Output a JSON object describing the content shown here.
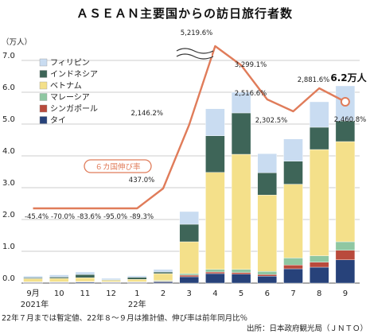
{
  "chart_data": {
    "type": "bar",
    "title": "ＡＳＥＡＮ主要国からの訪日旅行者数",
    "unit_label": "（万人）",
    "categories": [
      "9月",
      "10",
      "11",
      "12",
      "1",
      "2",
      "3",
      "4",
      "5",
      "6",
      "7",
      "8",
      "9"
    ],
    "category_sublabels": [
      "2021年",
      "",
      "",
      "",
      "22年",
      "",
      "",
      "",
      "",
      "",
      "",
      "",
      ""
    ],
    "ylim": [
      0,
      7
    ],
    "yticks": [
      "0.0",
      "1.0",
      "2.0",
      "3.0",
      "4.0",
      "5.0",
      "6.0",
      "7.0"
    ],
    "stack_order": [
      "タイ",
      "シンガポール",
      "マレーシア",
      "ベトナム",
      "インドネシア",
      "フィリピン"
    ],
    "legend": [
      "フィリピン",
      "インドネシア",
      "ベトナム",
      "マレーシア",
      "シンガポール",
      "タイ"
    ],
    "colors": {
      "タイ": "#27427a",
      "シンガポール": "#b94a3c",
      "マレーシア": "#8fc7a2",
      "ベトナム": "#f4e08a",
      "インドネシア": "#3e6558",
      "フィリピン": "#c9dcf1"
    },
    "series": [
      {
        "name": "タイ",
        "values": [
          0.02,
          0.02,
          0.03,
          0.02,
          0.02,
          0.04,
          0.2,
          0.3,
          0.28,
          0.22,
          0.45,
          0.5,
          0.73
        ]
      },
      {
        "name": "シンガポール",
        "values": [
          0.01,
          0.01,
          0.01,
          0.01,
          0.01,
          0.02,
          0.05,
          0.05,
          0.05,
          0.05,
          0.12,
          0.16,
          0.3
        ]
      },
      {
        "name": "マレーシア",
        "values": [
          0.01,
          0.01,
          0.01,
          0.01,
          0.01,
          0.02,
          0.05,
          0.08,
          0.1,
          0.1,
          0.22,
          0.2,
          0.27
        ]
      },
      {
        "name": "ベトナム",
        "values": [
          0.1,
          0.11,
          0.12,
          0.05,
          0.08,
          0.22,
          1.0,
          3.05,
          3.62,
          2.4,
          2.32,
          3.34,
          3.15
        ]
      },
      {
        "name": "インドネシア",
        "values": [
          0.03,
          0.04,
          0.1,
          0.02,
          0.06,
          0.05,
          0.55,
          1.15,
          1.3,
          0.7,
          0.72,
          0.7,
          0.65
        ]
      },
      {
        "name": "フィリピン",
        "values": [
          0.05,
          0.07,
          0.08,
          0.04,
          0.05,
          0.08,
          0.4,
          0.85,
          0.65,
          0.6,
          0.7,
          0.8,
          1.1
        ]
      }
    ],
    "growth_line": {
      "name": "６カ国伸び率",
      "labels": [
        "-45.4%",
        "-70.0%",
        "-83.6%",
        "-95.0%",
        "-89.3%",
        "437.0%",
        "2,146.2%",
        "5,219.6%",
        "3,299.1%",
        "2,516.6%",
        "2,302.5%",
        "2,881.6%",
        "2,460.8%"
      ]
    },
    "annotation": "6.2万人",
    "footnote": "22年７月までは暫定値、22年８～９月は推計値、伸び率は前年同月比％",
    "source": "出所：日本政府観光局（ＪＮＴＯ）"
  }
}
